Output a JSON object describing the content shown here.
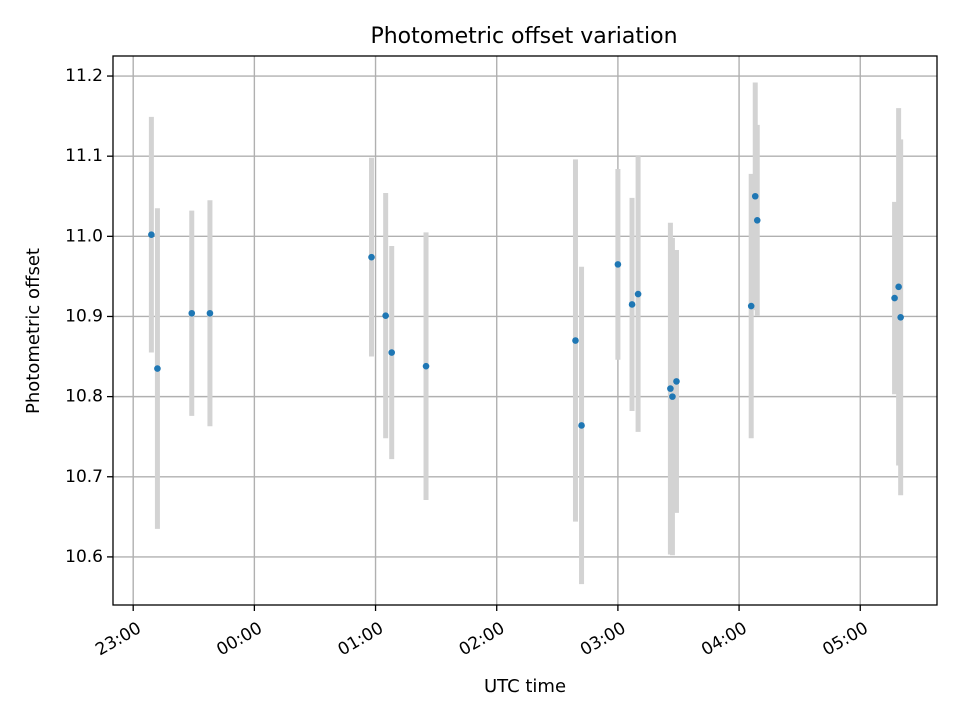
{
  "chart_data": {
    "type": "scatter",
    "title": "Photometric offset variation",
    "xlabel": "UTC time",
    "ylabel": "Photometric offset",
    "x_axis_type": "time",
    "xlim": [
      "22:50",
      "05:38"
    ],
    "ylim": [
      10.54,
      11.225
    ],
    "grid": true,
    "x_ticks": [
      "23:00",
      "00:00",
      "01:00",
      "02:00",
      "03:00",
      "04:00",
      "05:00"
    ],
    "x_tick_times": [
      "23:00",
      "00:00",
      "01:00",
      "02:00",
      "03:00",
      "04:00",
      "05:00"
    ],
    "y_ticks": [
      10.6,
      10.7,
      10.8,
      10.9,
      11.0,
      11.1,
      11.2
    ],
    "y_tick_labels": [
      "10.6",
      "10.7",
      "10.8",
      "10.9",
      "11.0",
      "11.1",
      "11.2"
    ],
    "marker_color": "#1f77b4",
    "errorbar_color": "#d3d3d3",
    "points": [
      {
        "time": "23:09",
        "y": 11.002,
        "err": 0.147
      },
      {
        "time": "23:12",
        "y": 10.835,
        "err": 0.2
      },
      {
        "time": "23:29",
        "y": 10.904,
        "err": 0.128
      },
      {
        "time": "23:38",
        "y": 10.904,
        "err": 0.141
      },
      {
        "time": "00:58",
        "y": 10.974,
        "err": 0.124
      },
      {
        "time": "01:05",
        "y": 10.901,
        "err": 0.153
      },
      {
        "time": "01:08",
        "y": 10.855,
        "err": 0.133
      },
      {
        "time": "01:25",
        "y": 10.838,
        "err": 0.167
      },
      {
        "time": "02:39",
        "y": 10.87,
        "err": 0.226
      },
      {
        "time": "02:42",
        "y": 10.764,
        "err": 0.198
      },
      {
        "time": "03:00",
        "y": 10.965,
        "err": 0.119
      },
      {
        "time": "03:07",
        "y": 10.915,
        "err": 0.133
      },
      {
        "time": "03:10",
        "y": 10.928,
        "err": 0.172
      },
      {
        "time": "03:26",
        "y": 10.81,
        "err": 0.207
      },
      {
        "time": "03:27",
        "y": 10.8,
        "err": 0.198
      },
      {
        "time": "03:29",
        "y": 10.819,
        "err": 0.164
      },
      {
        "time": "04:06",
        "y": 10.913,
        "err": 0.165
      },
      {
        "time": "04:08",
        "y": 11.05,
        "err": 0.142
      },
      {
        "time": "04:09",
        "y": 11.02,
        "err": 0.119
      },
      {
        "time": "05:17",
        "y": 10.923,
        "err": 0.12
      },
      {
        "time": "05:19",
        "y": 10.937,
        "err": 0.223
      },
      {
        "time": "05:20",
        "y": 10.899,
        "err": 0.222
      }
    ]
  }
}
